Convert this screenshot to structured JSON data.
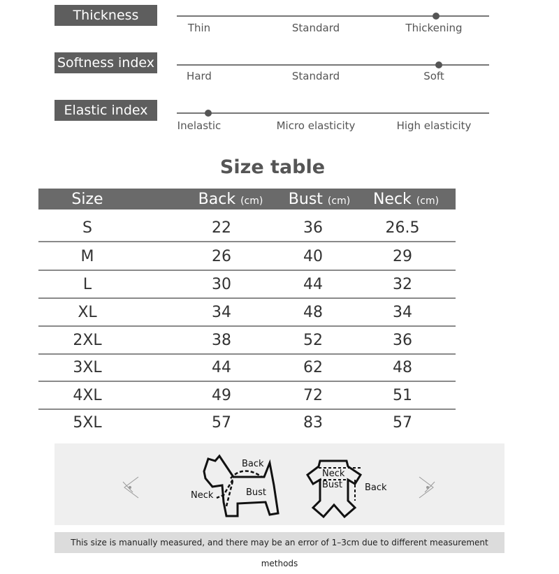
{
  "indices": [
    {
      "label": "Thickness index",
      "scale": [
        "Thin",
        "Standard",
        "Thickening"
      ],
      "selected": "Thickening",
      "level": 0.83
    },
    {
      "label": "Softness index",
      "scale": [
        "Hard",
        "Standard",
        "Soft"
      ],
      "selected": "Soft",
      "level": 0.84
    },
    {
      "label": "Elastic index",
      "scale": [
        "Inelastic",
        "Micro elasticity",
        "High elasticity"
      ],
      "selected": "Inelastic",
      "level": 0.1
    }
  ],
  "size_table": {
    "title": "Size table",
    "headers": [
      {
        "name": "Size",
        "unit": ""
      },
      {
        "name": "Back",
        "unit": "(cm)"
      },
      {
        "name": "Bust",
        "unit": "(cm)"
      },
      {
        "name": "Neck",
        "unit": "(cm)"
      }
    ],
    "rows": [
      [
        "S",
        "22",
        "36",
        "26.5"
      ],
      [
        "M",
        "26",
        "40",
        "29"
      ],
      [
        "L",
        "30",
        "44",
        "32"
      ],
      [
        "XL",
        "34",
        "48",
        "34"
      ],
      [
        "2XL",
        "38",
        "52",
        "36"
      ],
      [
        "3XL",
        "44",
        "62",
        "48"
      ],
      [
        "4XL",
        "49",
        "72",
        "51"
      ],
      [
        "5XL",
        "57",
        "83",
        "57"
      ]
    ]
  },
  "diagram": {
    "dog_labels": {
      "back": "Back",
      "neck": "Neck",
      "bust": "Bust"
    },
    "garment_labels": {
      "neck": "Neck",
      "bust": "Bust",
      "back": "Back"
    }
  },
  "note": "This size is manually measured, and there may be an error of 1–3cm due to different measurement methods",
  "colors": {
    "label_bg": "#5e5e5e",
    "header_bg": "#6a6a6a"
  }
}
